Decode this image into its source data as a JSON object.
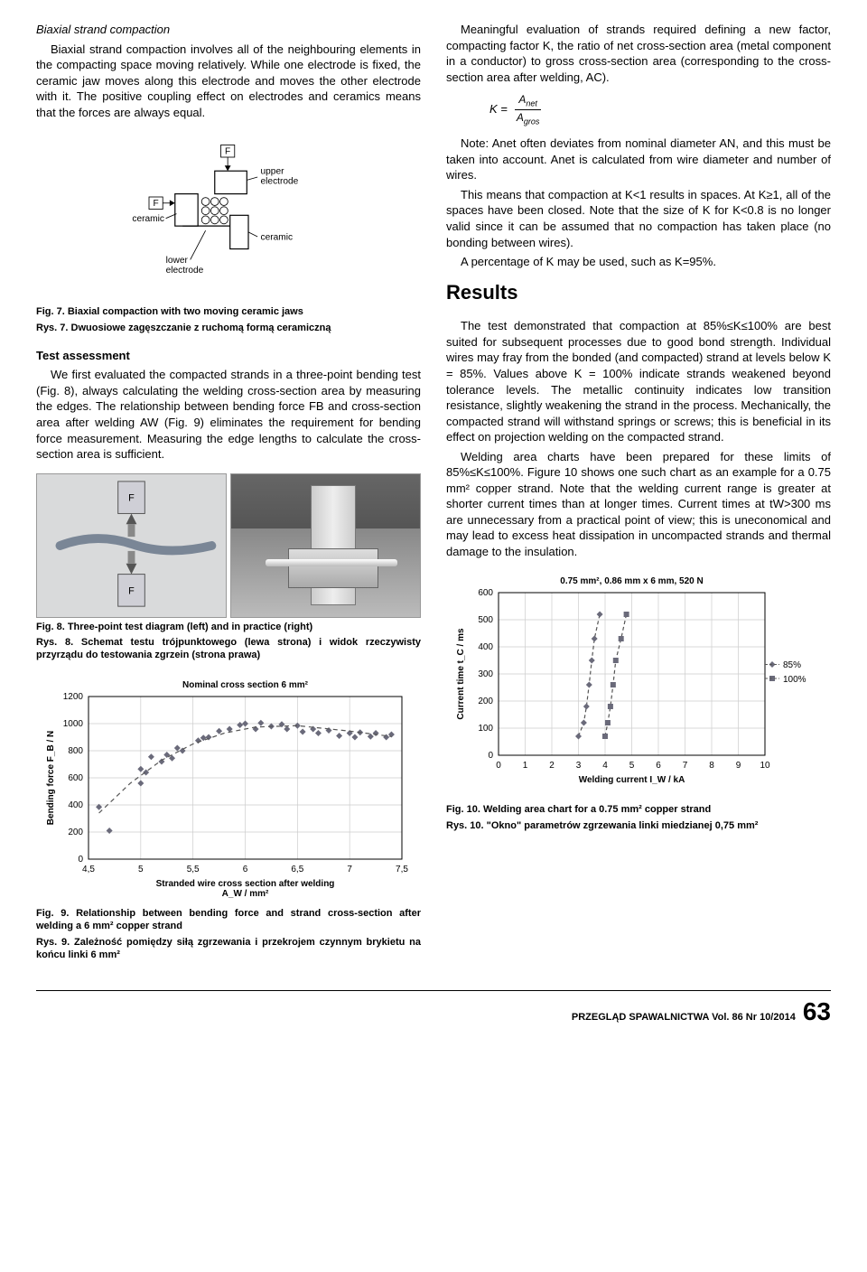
{
  "left": {
    "biaxial_head": "Biaxial strand compaction",
    "biaxial_p": "Biaxial strand compaction involves all of the neighbouring elements in the compacting space moving relatively. While one electrode is fixed, the ceramic jaw moves along this electrode and moves the other electrode with it. The positive coupling effect on electrodes and ceramics means that the forces are always equal.",
    "fig7": {
      "labels": {
        "F_top": "F",
        "F_left": "F",
        "upper": "upper\nelectrode",
        "lower": "lower\nelectrode",
        "ceramic_l": "ceramic",
        "ceramic_r": "ceramic"
      },
      "cap_en": "Fig. 7. Biaxial compaction with two moving ceramic jaws",
      "cap_pl": "Rys. 7. Dwuosiowe zagęszczanie z ruchomą formą ceramiczną"
    },
    "test_head": "Test assessment",
    "test_p": "We first evaluated the compacted strands in a three-point bending test (Fig. 8), always calculating the welding cross-section area by measuring the edges. The relationship between bending force FB and cross-section area after welding AW (Fig. 9) eliminates the requirement for bending force measurement. Measuring the edge lengths to calculate the cross-section area is sufficient.",
    "fig8": {
      "cap_en": "Fig. 8. Three-point test diagram (left) and in practice (right)",
      "cap_pl": "Rys. 8. Schemat testu trójpunktowego (lewa strona) i widok rzeczywisty przyrządu do testowania zgrzein (strona prawa)"
    },
    "fig9": {
      "title": "Nominal cross section 6 mm²",
      "ylabel": "Bending force F_B / N",
      "xlabel": "Stranded wire cross section after welding\nA_W / mm²",
      "ylim": [
        0,
        1200
      ],
      "ytick_step": 200,
      "xlim": [
        4.5,
        7.5
      ],
      "xtick_step": 0.5,
      "grid_color": "#cccccc",
      "marker_color": "#6a6a7a",
      "background_color": "#ffffff",
      "points": [
        [
          4.6,
          385
        ],
        [
          4.7,
          210
        ],
        [
          5.0,
          560
        ],
        [
          5.0,
          665
        ],
        [
          5.05,
          640
        ],
        [
          5.1,
          755
        ],
        [
          5.2,
          720
        ],
        [
          5.25,
          770
        ],
        [
          5.3,
          745
        ],
        [
          5.35,
          820
        ],
        [
          5.4,
          800
        ],
        [
          5.55,
          875
        ],
        [
          5.6,
          895
        ],
        [
          5.65,
          900
        ],
        [
          5.75,
          945
        ],
        [
          5.85,
          960
        ],
        [
          5.95,
          990
        ],
        [
          6.0,
          1000
        ],
        [
          6.1,
          960
        ],
        [
          6.15,
          1005
        ],
        [
          6.25,
          980
        ],
        [
          6.35,
          995
        ],
        [
          6.4,
          960
        ],
        [
          6.5,
          985
        ],
        [
          6.55,
          940
        ],
        [
          6.65,
          960
        ],
        [
          6.7,
          930
        ],
        [
          6.8,
          950
        ],
        [
          6.9,
          910
        ],
        [
          7.0,
          930
        ],
        [
          7.05,
          900
        ],
        [
          7.1,
          935
        ],
        [
          7.2,
          905
        ],
        [
          7.25,
          930
        ],
        [
          7.35,
          900
        ],
        [
          7.4,
          920
        ]
      ],
      "trend": [
        [
          4.6,
          340
        ],
        [
          4.9,
          560
        ],
        [
          5.2,
          730
        ],
        [
          5.5,
          850
        ],
        [
          5.8,
          930
        ],
        [
          6.1,
          975
        ],
        [
          6.5,
          985
        ],
        [
          7.0,
          945
        ],
        [
          7.4,
          905
        ]
      ],
      "cap_en": "Fig. 9. Relationship between bending force and strand cross-section after welding a 6 mm² copper strand",
      "cap_pl": "Rys. 9. Zależność pomiędzy siłą zgrzewania i przekrojem czynnym brykietu na końcu linki 6 mm²"
    }
  },
  "right": {
    "p1": "Meaningful evaluation of strands required defining a new factor, compacting factor K, the ratio of net cross-section area (metal component in a conductor) to gross cross-section area (corresponding to the cross-section area after welding, AC).",
    "formula": {
      "K": "K =",
      "num": "A_net",
      "den": "A_gros"
    },
    "p2": "Note: Anet often deviates from nominal diameter AN, and this must be taken into account. Anet is calculated from wire diameter and number of wires.",
    "p3": "This means that compaction at K<1 results in spaces. At K≥1, all of the spaces have been closed. Note that the size of K for K<0.8 is no longer valid since it can be assumed that no compaction has taken place (no bonding between wires).",
    "p4": "A percentage of K may be used, such as K=95%.",
    "results_head": "Results",
    "p5": "The test demonstrated that compaction at 85%≤K≤100% are best suited for subsequent processes due to good bond strength. Individual wires may fray from the bonded (and compacted) strand at levels below K = 85%. Values above K = 100% indicate strands weakened beyond tolerance levels. The metallic continuity indicates low transition resistance, slightly weakening the strand in the process. Mechanically, the compacted strand will withstand springs or screws; this is beneficial in its effect on projection welding on the compacted strand.",
    "p6": "Welding area charts have been prepared for these limits of 85%≤K≤100%. Figure 10 shows one such chart as an example for a 0.75 mm² copper strand. Note that the welding current range is greater at shorter current times than at longer times. Current times at tW>300 ms are unnecessary from a practical point of view; this is uneconomical and may lead to excess heat dissipation in uncompacted strands and thermal damage to the insulation.",
    "fig10": {
      "title": "0.75 mm², 0.86 mm x 6 mm, 520 N",
      "ylabel": "Current time t_C / ms",
      "xlabel": "Welding current I_W / kA",
      "ylim": [
        0,
        600
      ],
      "ytick_step": 100,
      "xlim": [
        0,
        10
      ],
      "xtick_step": 1,
      "grid_color": "#cccccc",
      "series85_color": "#6a6a7a",
      "series100_color": "#6a6a7a",
      "series85": [
        [
          3.0,
          70
        ],
        [
          3.2,
          120
        ],
        [
          3.3,
          180
        ],
        [
          3.4,
          260
        ],
        [
          3.5,
          350
        ],
        [
          3.6,
          430
        ],
        [
          3.8,
          520
        ]
      ],
      "series100": [
        [
          4.0,
          70
        ],
        [
          4.1,
          120
        ],
        [
          4.2,
          180
        ],
        [
          4.3,
          260
        ],
        [
          4.4,
          350
        ],
        [
          4.6,
          430
        ],
        [
          4.8,
          520
        ]
      ],
      "legend": {
        "s85": "85%",
        "s100": "100%"
      },
      "cap_en": "Fig. 10. Welding area chart for a 0.75 mm² copper strand",
      "cap_pl": "Rys. 10. \"Okno\" parametrów zgrzewania linki miedzianej 0,75 mm²"
    }
  },
  "footer": {
    "journal": "PRZEGLĄD SPAWALNICTWA Vol. 86  Nr 10/2014",
    "page": "63"
  }
}
